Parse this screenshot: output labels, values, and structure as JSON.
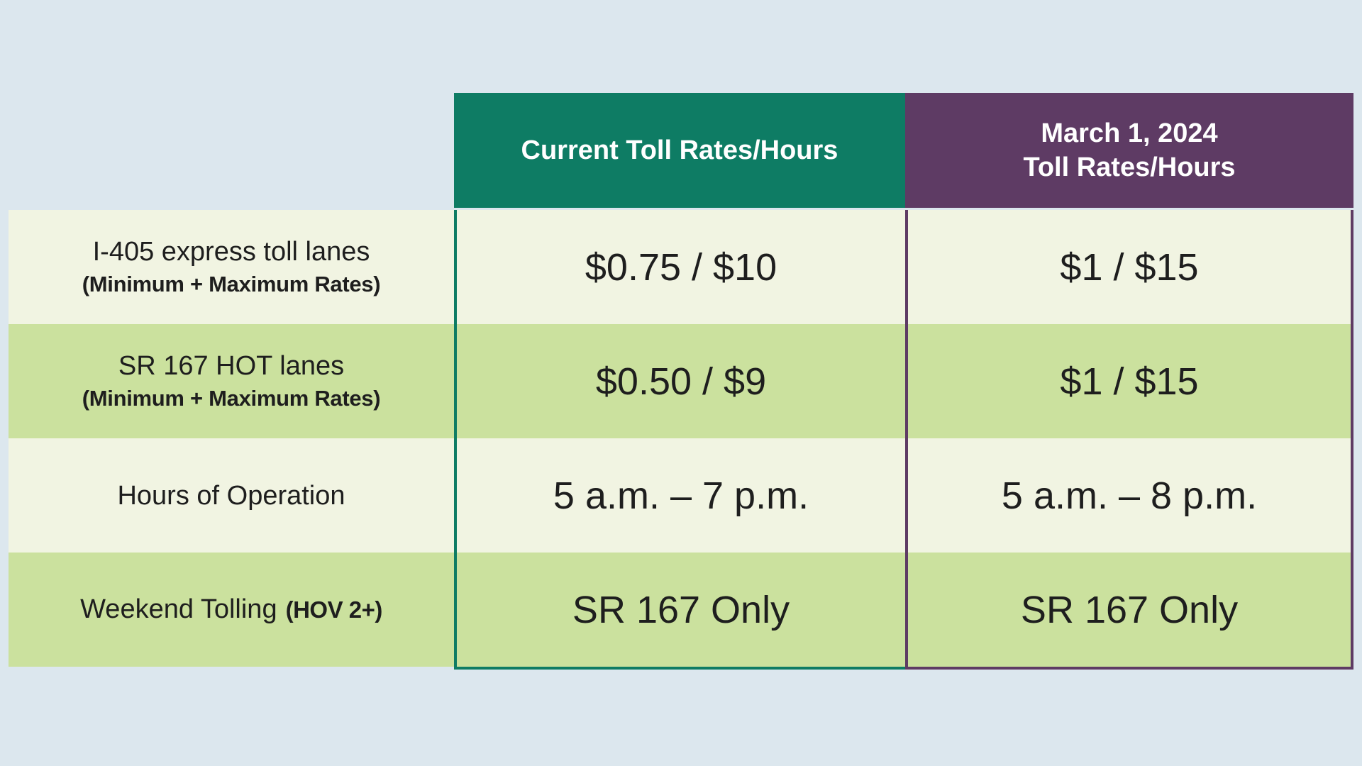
{
  "page": {
    "background": "#dce7ee"
  },
  "colors": {
    "teal": "#0e7c64",
    "purple": "#5e3b64",
    "cream": "#f1f4e2",
    "green": "#cbe19e",
    "header_text": "#ffffff",
    "body_text": "#1e1e1e"
  },
  "table": {
    "headers": {
      "current": "Current Toll Rates/Hours",
      "march_line1": "March 1, 2024",
      "march_line2": "Toll Rates/Hours"
    },
    "rows": [
      {
        "label": "I-405 express toll lanes",
        "sublabel": "(Minimum + Maximum Rates)",
        "current": "$0.75 / $10",
        "march": "$1 / $15"
      },
      {
        "label": "SR 167 HOT lanes",
        "sublabel": "(Minimum + Maximum Rates)",
        "current": "$0.50 / $9",
        "march": "$1 / $15"
      },
      {
        "label": "Hours of Operation",
        "current": "5 a.m. – 7 p.m.",
        "march": "5 a.m. – 8 p.m."
      },
      {
        "label": "Weekend Tolling",
        "label_suffix": "(HOV 2+)",
        "current": "SR 167 Only",
        "march": "SR 167 Only"
      }
    ]
  },
  "chart_data": {
    "type": "table",
    "columns": [
      "",
      "Current Toll Rates/Hours",
      "March 1, 2024 Toll Rates/Hours"
    ],
    "rows": [
      [
        "I-405 express toll lanes (Minimum + Maximum Rates)",
        "$0.75 / $10",
        "$1 / $15"
      ],
      [
        "SR 167 HOT lanes (Minimum + Maximum Rates)",
        "$0.50 / $9",
        "$1 / $15"
      ],
      [
        "Hours of Operation",
        "5 a.m. – 7 p.m.",
        "5 a.m. – 8 p.m."
      ],
      [
        "Weekend Tolling (HOV 2+)",
        "SR 167 Only",
        "SR 167 Only"
      ]
    ]
  }
}
